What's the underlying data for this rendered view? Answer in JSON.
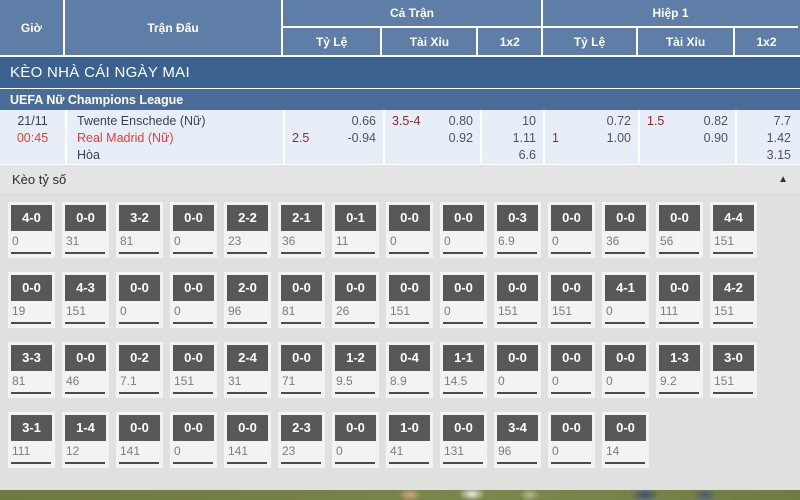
{
  "header": {
    "time": "Giờ",
    "match": "Trận Đấu",
    "full_match": "Cả Trận",
    "first_half": "Hiệp 1",
    "odds": "Tỷ Lệ",
    "over_under": "Tài Xỉu",
    "one_x_two": "1x2"
  },
  "banner": "KÈO NHÀ CÁI NGÀY MAI",
  "league": "UEFA Nữ Champions League",
  "match": {
    "date": "21/11",
    "time": "00:45",
    "home": "Twente Enschede (Nữ)",
    "away": "Real Madrid (Nữ)",
    "draw_label": "Hòa",
    "full": {
      "hdp_line": "2.5",
      "hdp_top": "0.66",
      "hdp_bottom": "-0.94",
      "ou_line": "3.5-4",
      "ou_top": "0.80",
      "ou_bottom": "0.92",
      "x12": [
        "10",
        "1.11",
        "6.6"
      ]
    },
    "half": {
      "hdp_line": "1",
      "hdp_top": "0.72",
      "hdp_bottom": "1.00",
      "ou_line": "1.5",
      "ou_top": "0.82",
      "ou_bottom": "0.90",
      "x12": [
        "7.7",
        "1.42",
        "3.15"
      ]
    }
  },
  "score_section": {
    "title": "Kèo tỷ số",
    "collapse_icon": "▲",
    "rows": [
      [
        {
          "score": "4-0",
          "value": "0"
        },
        {
          "score": "0-0",
          "value": "31"
        },
        {
          "score": "3-2",
          "value": "81"
        },
        {
          "score": "0-0",
          "value": "0"
        },
        {
          "score": "2-2",
          "value": "23"
        },
        {
          "score": "2-1",
          "value": "36"
        },
        {
          "score": "0-1",
          "value": "11"
        },
        {
          "score": "0-0",
          "value": "0"
        },
        {
          "score": "0-0",
          "value": "0"
        },
        {
          "score": "0-3",
          "value": "6.9"
        },
        {
          "score": "0-0",
          "value": "0"
        },
        {
          "score": "0-0",
          "value": "36"
        },
        {
          "score": "0-0",
          "value": "56"
        },
        {
          "score": "4-4",
          "value": "151"
        }
      ],
      [
        {
          "score": "0-0",
          "value": "19"
        },
        {
          "score": "4-3",
          "value": "151"
        },
        {
          "score": "0-0",
          "value": "0"
        },
        {
          "score": "0-0",
          "value": "0"
        },
        {
          "score": "2-0",
          "value": "96"
        },
        {
          "score": "0-0",
          "value": "81"
        },
        {
          "score": "0-0",
          "value": "26"
        },
        {
          "score": "0-0",
          "value": "151"
        },
        {
          "score": "0-0",
          "value": "0"
        },
        {
          "score": "0-0",
          "value": "151"
        },
        {
          "score": "0-0",
          "value": "151"
        },
        {
          "score": "4-1",
          "value": "0"
        },
        {
          "score": "0-0",
          "value": "111"
        },
        {
          "score": "4-2",
          "value": "151"
        }
      ],
      [
        {
          "score": "3-3",
          "value": "81"
        },
        {
          "score": "0-0",
          "value": "46"
        },
        {
          "score": "0-2",
          "value": "7.1"
        },
        {
          "score": "0-0",
          "value": "151"
        },
        {
          "score": "2-4",
          "value": "31"
        },
        {
          "score": "0-0",
          "value": "71"
        },
        {
          "score": "1-2",
          "value": "9.5"
        },
        {
          "score": "0-4",
          "value": "8.9"
        },
        {
          "score": "1-1",
          "value": "14.5"
        },
        {
          "score": "0-0",
          "value": "0"
        },
        {
          "score": "0-0",
          "value": "0"
        },
        {
          "score": "0-0",
          "value": "0"
        },
        {
          "score": "1-3",
          "value": "9.2"
        },
        {
          "score": "3-0",
          "value": "151"
        }
      ],
      [
        {
          "score": "3-1",
          "value": "111"
        },
        {
          "score": "1-4",
          "value": "12"
        },
        {
          "score": "0-0",
          "value": "141"
        },
        {
          "score": "0-0",
          "value": "0"
        },
        {
          "score": "0-0",
          "value": "141"
        },
        {
          "score": "2-3",
          "value": "23"
        },
        {
          "score": "0-0",
          "value": "0"
        },
        {
          "score": "1-0",
          "value": "41"
        },
        {
          "score": "0-0",
          "value": "131"
        },
        {
          "score": "3-4",
          "value": "96"
        },
        {
          "score": "0-0",
          "value": "0"
        },
        {
          "score": "0-0",
          "value": "14"
        },
        null,
        null
      ]
    ]
  },
  "colors": {
    "header_blue": "#5e7da7",
    "banner_blue": "#3a6190",
    "league_blue": "#4a6c98",
    "row_bg": "#e8eef8",
    "red": "#e63c35",
    "handicap_maroon": "#8e2a24",
    "score_box_gray": "#57585a",
    "section_gray": "#e0e0e0"
  }
}
